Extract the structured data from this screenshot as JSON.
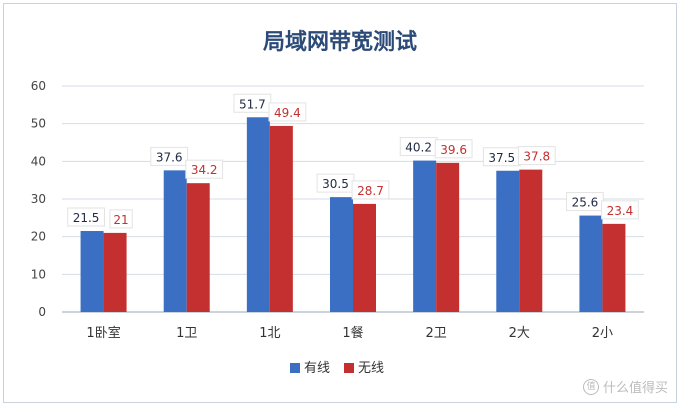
{
  "chart_data": {
    "type": "bar",
    "title": "局域网带宽测试",
    "categories": [
      "1卧室",
      "1卫",
      "1北",
      "1餐",
      "2卫",
      "2大",
      "2小"
    ],
    "series": [
      {
        "name": "有线",
        "color": "#3a6fc4",
        "values": [
          21.5,
          37.6,
          51.7,
          30.5,
          40.2,
          37.5,
          25.6
        ]
      },
      {
        "name": "无线",
        "color": "#c4302f",
        "values": [
          21,
          34.2,
          49.4,
          28.7,
          39.6,
          37.8,
          23.4
        ]
      }
    ],
    "data_label_colors": [
      "#1f2a44",
      "#c4302f"
    ],
    "ylim": [
      0,
      60
    ],
    "yticks": [
      0,
      10,
      20,
      30,
      40,
      50,
      60
    ],
    "grid": true,
    "legend_position": "bottom"
  },
  "watermark": {
    "logo_glyph": "值",
    "text": "什么值得买"
  }
}
